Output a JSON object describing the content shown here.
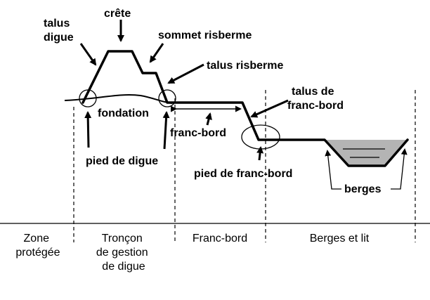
{
  "labels": {
    "talus_digue": [
      "talus",
      "digue"
    ],
    "crete": "crête",
    "sommet_risberme": "sommet risberme",
    "talus_risberme": "talus risberme",
    "talus_franc_bord": [
      "talus de",
      "franc-bord"
    ],
    "fondation": "fondation",
    "franc_bord": "franc-bord",
    "pied_de_digue": "pied de digue",
    "pied_de_franc_bord": "pied de franc-bord",
    "berges": "berges"
  },
  "zones": {
    "zone_protegee": [
      "Zone",
      "protégée"
    ],
    "troncon": [
      "Tronçon",
      "de gestion",
      "de digue"
    ],
    "franc_bord": "Franc-bord",
    "berges_et_lit": "Berges et lit"
  },
  "colors": {
    "line": "#000000",
    "water": "#b4b4b4",
    "background": "#ffffff"
  }
}
